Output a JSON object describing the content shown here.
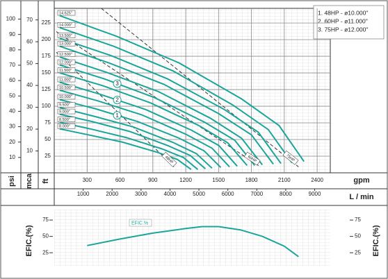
{
  "legend": [
    "1. 48HP - ø10.000''",
    "2. 60HP - ø11.000''",
    "3. 75HP - ø12.000''"
  ],
  "chart_data": [
    {
      "type": "line",
      "xlim": [
        0,
        2520
      ],
      "xticks": [
        300,
        600,
        900,
        1200,
        1500,
        1800,
        2100,
        2400
      ],
      "x_label": "gpm",
      "x2lim": [
        0,
        9540
      ],
      "x2ticks": [
        1000,
        2000,
        3000,
        4000,
        5000,
        6000,
        7000,
        8000,
        9000
      ],
      "x2_label": "L / min",
      "ylim": [
        0,
        247
      ],
      "yticks": [
        25,
        50,
        75,
        100,
        125,
        150,
        175,
        200,
        225
      ],
      "y_label": "ft",
      "psi_lim": [
        0,
        107
      ],
      "psi_ticks": [
        10,
        20,
        30,
        40,
        50,
        60,
        70,
        80,
        90,
        100
      ],
      "psi_label": "psi",
      "mca_lim": [
        0,
        75.3
      ],
      "mca_ticks": [
        10,
        20,
        30,
        40,
        50,
        60,
        70
      ],
      "mca_label": "mca",
      "grid": true,
      "series": [
        {
          "name": "14.625\"",
          "color": "#1aa59a",
          "x": [
            50,
            570,
            1140,
            1710,
            2052,
            2280
          ],
          "values": [
            236,
            205,
            165,
            111,
            71,
            17
          ]
        },
        {
          "name": "14.000\"",
          "color": "#1aa59a",
          "x": [
            50,
            543,
            1085,
            1628,
            1953,
            2170
          ],
          "values": [
            218,
            190,
            153,
            102,
            65,
            15
          ]
        },
        {
          "name": "13.500\"",
          "color": "#1aa59a",
          "x": [
            50,
            518,
            1035,
            1553,
            1863,
            2070
          ],
          "values": [
            202,
            176,
            141,
            95,
            61,
            14
          ]
        },
        {
          "name": "13.000\"",
          "color": "#1aa59a",
          "x": [
            50,
            500,
            1000,
            1500,
            1800,
            2000
          ],
          "values": [
            190,
            165,
            133,
            89,
            57,
            13
          ]
        },
        {
          "name": "12.500\"",
          "color": "#1aa59a",
          "x": [
            50,
            475,
            950,
            1425,
            1710,
            1900
          ],
          "values": [
            174,
            151,
            122,
            82,
            52,
            12
          ]
        },
        {
          "name": "12.000\"",
          "color": "#1aa59a",
          "x": [
            50,
            458,
            915,
            1373,
            1647,
            1830
          ],
          "values": [
            162,
            141,
            113,
            76,
            49,
            11
          ]
        },
        {
          "name": "11.500\"",
          "color": "#1aa59a",
          "x": [
            50,
            440,
            880,
            1320,
            1584,
            1760
          ],
          "values": [
            150,
            131,
            105,
            71,
            45,
            11
          ]
        },
        {
          "name": "11.000\"",
          "color": "#1aa59a",
          "x": [
            50,
            418,
            835,
            1253,
            1503,
            1670
          ],
          "values": [
            136,
            118,
            95,
            64,
            41,
            10
          ]
        },
        {
          "name": "10.500\"",
          "color": "#1aa59a",
          "x": [
            50,
            400,
            800,
            1200,
            1440,
            1600
          ],
          "values": [
            124,
            108,
            87,
            58,
            37,
            9
          ]
        },
        {
          "name": "10.000\"",
          "color": "#1aa59a",
          "x": [
            50,
            380,
            760,
            1140,
            1368,
            1520
          ],
          "values": [
            110,
            96,
            77,
            52,
            33,
            8
          ]
        },
        {
          "name": "9.500\"",
          "color": "#1aa59a",
          "x": [
            50,
            360,
            720,
            1080,
            1296,
            1440
          ],
          "values": [
            98,
            85,
            69,
            46,
            29,
            7
          ]
        },
        {
          "name": "9.000\"",
          "color": "#1aa59a",
          "x": [
            50,
            345,
            690,
            1035,
            1242,
            1380
          ],
          "values": [
            88,
            77,
            62,
            41,
            26,
            6
          ]
        },
        {
          "name": "8.500\"",
          "color": "#1aa59a",
          "x": [
            50,
            328,
            655,
            983,
            1179,
            1310
          ],
          "values": [
            76,
            66,
            53,
            36,
            23,
            5
          ]
        },
        {
          "name": "8.000\"",
          "color": "#1aa59a",
          "x": [
            50,
            313,
            625,
            938,
            1125,
            1250
          ],
          "values": [
            66,
            57,
            46,
            31,
            20,
            5
          ]
        }
      ],
      "hp_lines": [
        {
          "name": "48HP",
          "color": "#333333",
          "x": [
            19,
            1093
          ],
          "values": [
            181,
            9
          ]
        },
        {
          "name": "60HP",
          "color": "#333333",
          "x": [
            19,
            1882
          ],
          "values": [
            212,
            9
          ]
        },
        {
          "name": "75HP",
          "color": "#333333",
          "x": [
            429,
            2230
          ],
          "values": [
            247,
            9
          ]
        }
      ],
      "curve_markers": [
        "1",
        "2",
        "3"
      ]
    },
    {
      "type": "line",
      "xlim": [
        0,
        2520
      ],
      "ylim": [
        5,
        91
      ],
      "yticks": [
        25,
        50,
        75
      ],
      "y_label": "EFIC.(%)",
      "grid": true,
      "series": [
        {
          "name": "EFIC.%",
          "color": "#1aa59a",
          "x": [
            300,
            600,
            900,
            1200,
            1350,
            1500,
            1700,
            1900,
            2100,
            2230
          ],
          "values": [
            36,
            46,
            55,
            62,
            65,
            65,
            60,
            50,
            35,
            19
          ]
        }
      ]
    }
  ]
}
